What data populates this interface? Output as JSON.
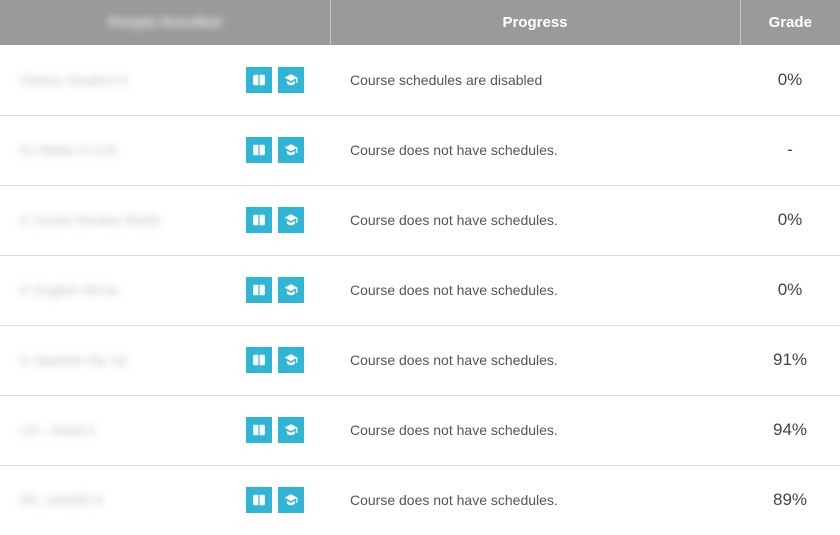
{
  "table": {
    "headers": {
      "course": "People Enrolled",
      "progress": "Progress",
      "grade": "Grade"
    },
    "icon_color": "#2fb6d6",
    "header_bg": "#9a9a9a",
    "border_color": "#dcdcdc",
    "rows": [
      {
        "course": "History Student A",
        "progress": "Course schedules are disabled",
        "grade": "0%"
      },
      {
        "course": "KJ Blake H.S.B",
        "progress": "Course does not have schedules.",
        "grade": "-"
      },
      {
        "course": "K Social Studies BaXb",
        "progress": "Course does not have schedules.",
        "grade": "0%"
      },
      {
        "course": "K English McVa",
        "progress": "Course does not have schedules.",
        "grade": "0%"
      },
      {
        "course": "K Spanish Aly Va",
        "progress": "Course does not have schedules.",
        "grade": "91%"
      },
      {
        "course": "US - Adult A",
        "progress": "Course does not have schedules.",
        "grade": "94%"
      },
      {
        "course": "IPL 140492 8",
        "progress": "Course does not have schedules.",
        "grade": "89%"
      }
    ]
  }
}
